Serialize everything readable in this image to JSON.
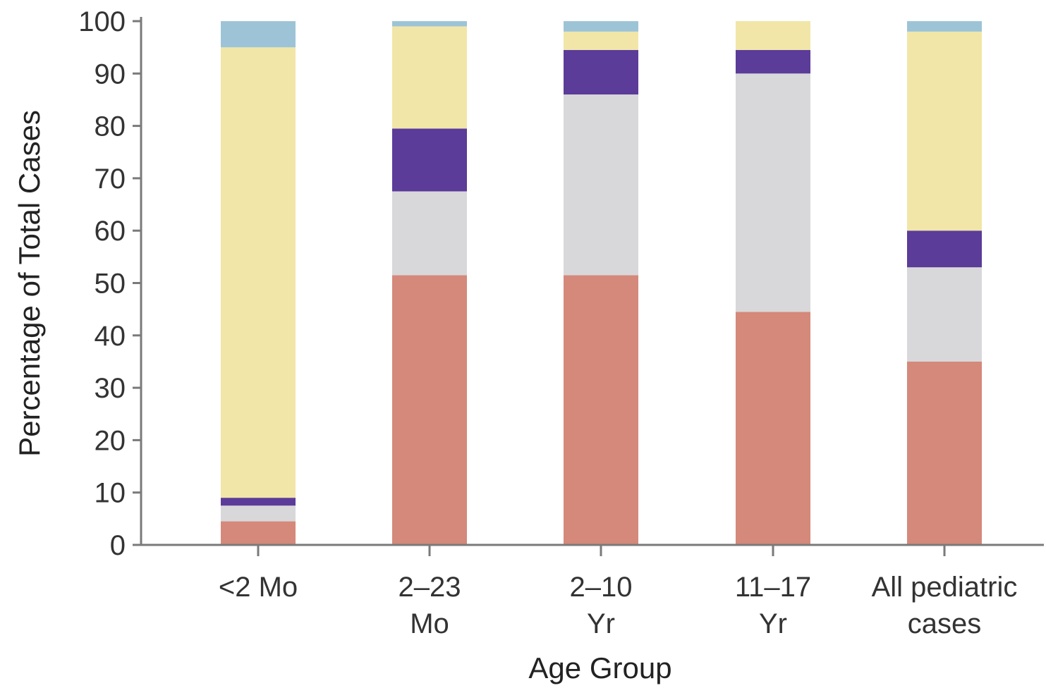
{
  "chart_data": {
    "type": "bar",
    "stacked": true,
    "title": "",
    "xlabel": "Age Group",
    "ylabel": "Percentage of Total Cases",
    "ylim": [
      0,
      100
    ],
    "yticks": [
      0,
      10,
      20,
      30,
      40,
      50,
      60,
      70,
      80,
      90,
      100
    ],
    "categories": [
      [
        "<2 Mo"
      ],
      [
        "2–23",
        "Mo"
      ],
      [
        "2–10",
        "Yr"
      ],
      [
        "11–17",
        "Yr"
      ],
      [
        "All pediatric",
        "cases"
      ]
    ],
    "legend": "none",
    "grid": false,
    "series": [
      {
        "color": "#d4897a",
        "values": [
          4.5,
          51.5,
          51.5,
          44.5,
          35
        ]
      },
      {
        "color": "#d8d8da",
        "values": [
          3,
          16,
          34.5,
          45.5,
          18
        ]
      },
      {
        "color": "#5b3c99",
        "values": [
          1.5,
          12,
          8.5,
          4.5,
          7
        ]
      },
      {
        "color": "#f1e6a8",
        "values": [
          86,
          19.5,
          3.5,
          5.5,
          38
        ]
      },
      {
        "color": "#9dc4d6",
        "values": [
          5,
          1,
          2,
          0,
          2
        ]
      }
    ]
  }
}
